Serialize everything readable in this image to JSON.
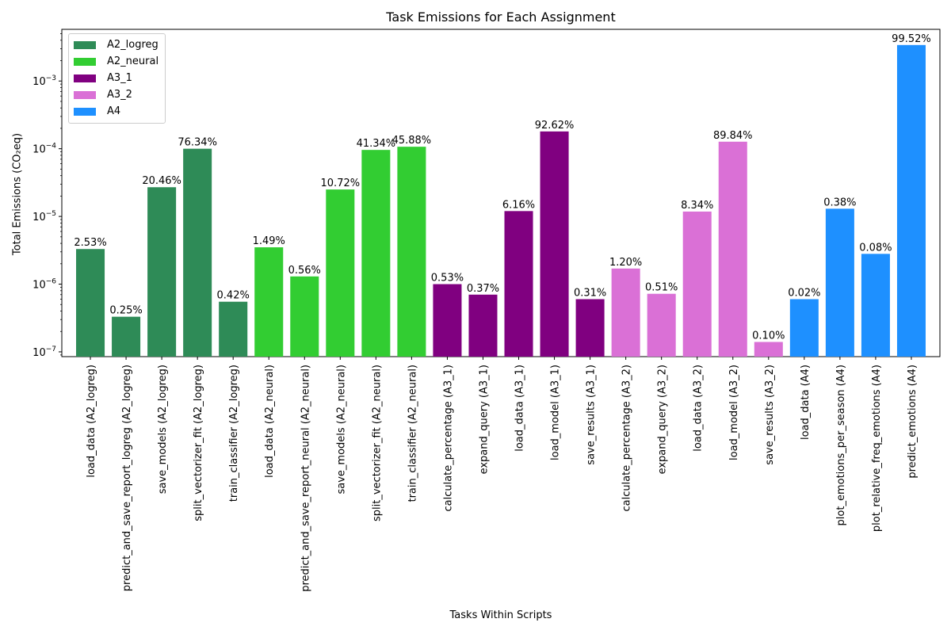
{
  "chart_data": {
    "type": "bar",
    "title": "Task Emissions for Each Assignment",
    "xlabel": "Tasks Within Scripts",
    "ylabel": "Total Emissions (CO₂eq)",
    "yscale": "log",
    "ylim": [
      8.5e-08,
      0.0058
    ],
    "yticks": [
      {
        "value": 1e-07,
        "mantissa": "10",
        "exponent": "−7"
      },
      {
        "value": 1e-06,
        "mantissa": "10",
        "exponent": "−6"
      },
      {
        "value": 1e-05,
        "mantissa": "10",
        "exponent": "−5"
      },
      {
        "value": 0.0001,
        "mantissa": "10",
        "exponent": "−4"
      },
      {
        "value": 0.001,
        "mantissa": "10",
        "exponent": "−3"
      }
    ],
    "legend_position": "upper-left",
    "grid": false,
    "series": [
      {
        "name": "A2_logreg",
        "color": "#2e8b57"
      },
      {
        "name": "A2_neural",
        "color": "#32cd32"
      },
      {
        "name": "A3_1",
        "color": "#800080"
      },
      {
        "name": "A3_2",
        "color": "#da70d6"
      },
      {
        "name": "A4",
        "color": "#1e90ff"
      }
    ],
    "bars": [
      {
        "category": "load_data (A2_logreg)",
        "series": "A2_logreg",
        "value": 3.3e-06,
        "label": "2.53%"
      },
      {
        "category": "predict_and_save_report_logreg (A2_logreg)",
        "series": "A2_logreg",
        "value": 3.3e-07,
        "label": "0.25%"
      },
      {
        "category": "save_models (A2_logreg)",
        "series": "A2_logreg",
        "value": 2.7e-05,
        "label": "20.46%"
      },
      {
        "category": "split_vectorizer_fit (A2_logreg)",
        "series": "A2_logreg",
        "value": 0.0001,
        "label": "76.34%"
      },
      {
        "category": "train_classifier (A2_logreg)",
        "series": "A2_logreg",
        "value": 5.5e-07,
        "label": "0.42%"
      },
      {
        "category": "load_data (A2_neural)",
        "series": "A2_neural",
        "value": 3.5e-06,
        "label": "1.49%"
      },
      {
        "category": "predict_and_save_report_neural (A2_neural)",
        "series": "A2_neural",
        "value": 1.3e-06,
        "label": "0.56%"
      },
      {
        "category": "save_models (A2_neural)",
        "series": "A2_neural",
        "value": 2.5e-05,
        "label": "10.72%"
      },
      {
        "category": "split_vectorizer_fit (A2_neural)",
        "series": "A2_neural",
        "value": 9.6e-05,
        "label": "41.34%"
      },
      {
        "category": "train_classifier (A2_neural)",
        "series": "A2_neural",
        "value": 0.000107,
        "label": "45.88%"
      },
      {
        "category": "calculate_percentage (A3_1)",
        "series": "A3_1",
        "value": 1e-06,
        "label": "0.53%"
      },
      {
        "category": "expand_query (A3_1)",
        "series": "A3_1",
        "value": 7e-07,
        "label": "0.37%"
      },
      {
        "category": "load_data (A3_1)",
        "series": "A3_1",
        "value": 1.2e-05,
        "label": "6.16%"
      },
      {
        "category": "load_model (A3_1)",
        "series": "A3_1",
        "value": 0.00018,
        "label": "92.62%"
      },
      {
        "category": "save_results (A3_1)",
        "series": "A3_1",
        "value": 6e-07,
        "label": "0.31%"
      },
      {
        "category": "calculate_percentage (A3_2)",
        "series": "A3_2",
        "value": 1.7e-06,
        "label": "1.20%"
      },
      {
        "category": "expand_query (A3_2)",
        "series": "A3_2",
        "value": 7.2e-07,
        "label": "0.51%"
      },
      {
        "category": "load_data (A3_2)",
        "series": "A3_2",
        "value": 1.18e-05,
        "label": "8.34%"
      },
      {
        "category": "load_model (A3_2)",
        "series": "A3_2",
        "value": 0.000127,
        "label": "89.84%"
      },
      {
        "category": "save_results (A3_2)",
        "series": "A3_2",
        "value": 1.4e-07,
        "label": "0.10%"
      },
      {
        "category": "load_data (A4)",
        "series": "A4",
        "value": 6e-07,
        "label": "0.02%"
      },
      {
        "category": "plot_emotions_per_season (A4)",
        "series": "A4",
        "value": 1.3e-05,
        "label": "0.38%"
      },
      {
        "category": "plot_relative_freq_emotions (A4)",
        "series": "A4",
        "value": 2.8e-06,
        "label": "0.08%"
      },
      {
        "category": "predict_emotions (A4)",
        "series": "A4",
        "value": 0.0034,
        "label": "99.52%"
      }
    ]
  }
}
